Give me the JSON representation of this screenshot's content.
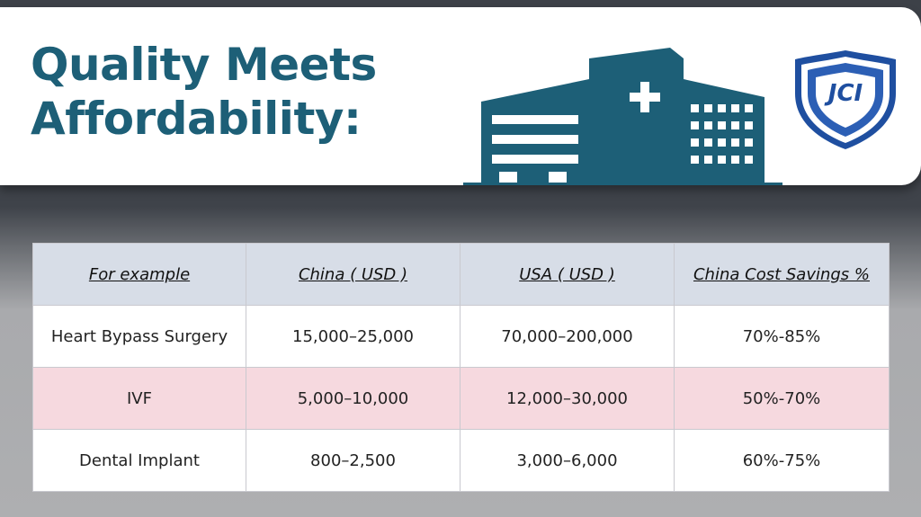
{
  "banner": {
    "title_line1": "Quality Meets",
    "title_line2": "Affordability:",
    "badge_text": "JCI",
    "colors": {
      "brand": "#1d5f77",
      "badge_blue": "#1f4fa0"
    }
  },
  "table": {
    "headers": [
      "For example",
      "China ( USD )",
      "USA ( USD )",
      "China Cost Savings %"
    ],
    "rows": [
      [
        "Heart Bypass Surgery",
        "15,000–25,000",
        "70,000–200,000",
        "70%-85%"
      ],
      [
        "IVF",
        "5,000–10,000",
        "12,000–30,000",
        "50%-70%"
      ],
      [
        "Dental Implant",
        "800–2,500",
        "3,000–6,000",
        "60%-75%"
      ]
    ]
  },
  "icons": [
    "hospital-building-icon",
    "jci-shield-badge-icon"
  ]
}
